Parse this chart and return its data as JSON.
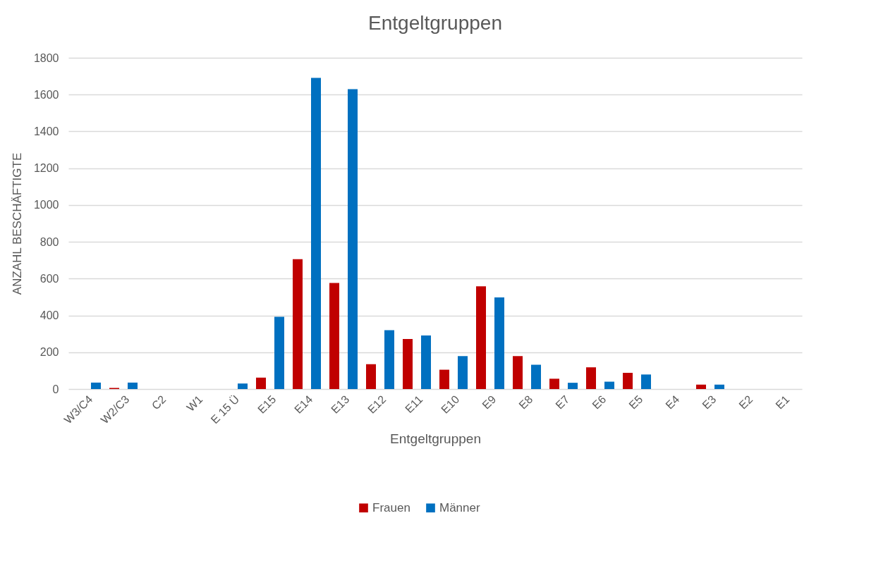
{
  "chart_data": {
    "type": "bar",
    "title": "Entgeltgruppen",
    "xlabel": "Entgeltgruppen",
    "ylabel": "ANZAHL BESCHÄFTIGTE",
    "categories": [
      "W3/C4",
      "W2/C3",
      "C2",
      "W1",
      "E 15 Ü",
      "E15",
      "E14",
      "E13",
      "E12",
      "E11",
      "E10",
      "E9",
      "E8",
      "E7",
      "E6",
      "E5",
      "E4",
      "E3",
      "E2",
      "E1"
    ],
    "series": [
      {
        "name": "Frauen",
        "color": "#c00000",
        "values": [
          0,
          6,
          0,
          0,
          0,
          62,
          706,
          576,
          135,
          272,
          105,
          558,
          179,
          56,
          118,
          88,
          0,
          24,
          0,
          0
        ]
      },
      {
        "name": "Männer",
        "color": "#0070c0",
        "values": [
          35,
          35,
          0,
          0,
          30,
          393,
          1691,
          1630,
          320,
          291,
          179,
          498,
          132,
          34,
          40,
          79,
          0,
          24,
          0,
          0
        ]
      }
    ],
    "ylim": [
      0,
      1800
    ],
    "yticks": [
      0,
      200,
      400,
      600,
      800,
      1000,
      1200,
      1400,
      1600,
      1800
    ],
    "grid": "y",
    "legend": "bottom"
  }
}
